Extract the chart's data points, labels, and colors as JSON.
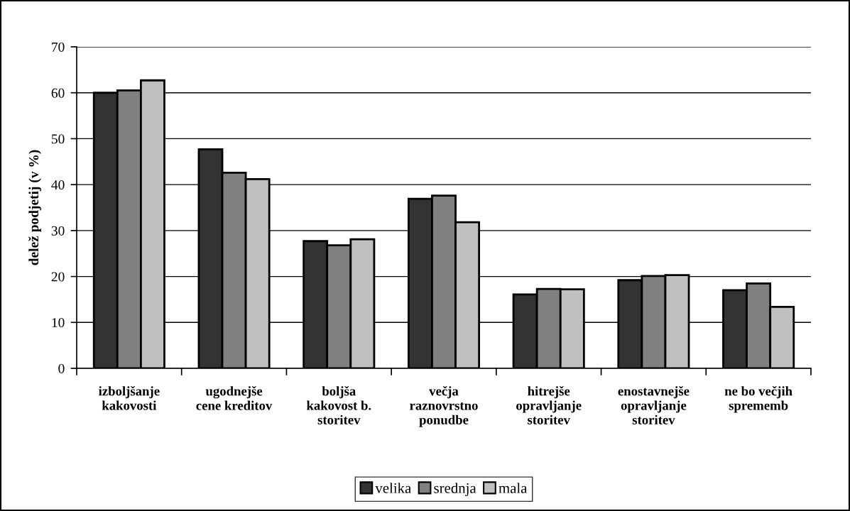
{
  "chart_data": {
    "type": "bar",
    "ylabel": "delež podjetij (v %)",
    "categories": [
      "izboljšanje\nkakovosti",
      "ugodnejše\ncene kreditov",
      "boljša\nkakovost b.\nstoritev",
      "večja\nraznovrstno\nponudbe",
      "hitrejše\nopravljanje\nstoritev",
      "enostavnejše\nopravljanje\nstoritev",
      "ne bo večjih\nsprememb"
    ],
    "series": [
      {
        "name": "velika",
        "color": "#333333",
        "values": [
          60.0,
          47.7,
          27.7,
          36.9,
          16.1,
          19.2,
          17.0
        ]
      },
      {
        "name": "srednja",
        "color": "#808080",
        "values": [
          60.5,
          42.6,
          26.8,
          37.6,
          17.3,
          20.1,
          18.5
        ]
      },
      {
        "name": "mala",
        "color": "#c0c0c0",
        "values": [
          62.7,
          41.2,
          28.1,
          31.8,
          17.2,
          20.3,
          13.4
        ]
      }
    ],
    "ylim": [
      0,
      70
    ],
    "yticks": [
      0,
      10,
      20,
      30,
      40,
      50,
      60,
      70
    ],
    "grid": "y",
    "legend": "bottom"
  }
}
